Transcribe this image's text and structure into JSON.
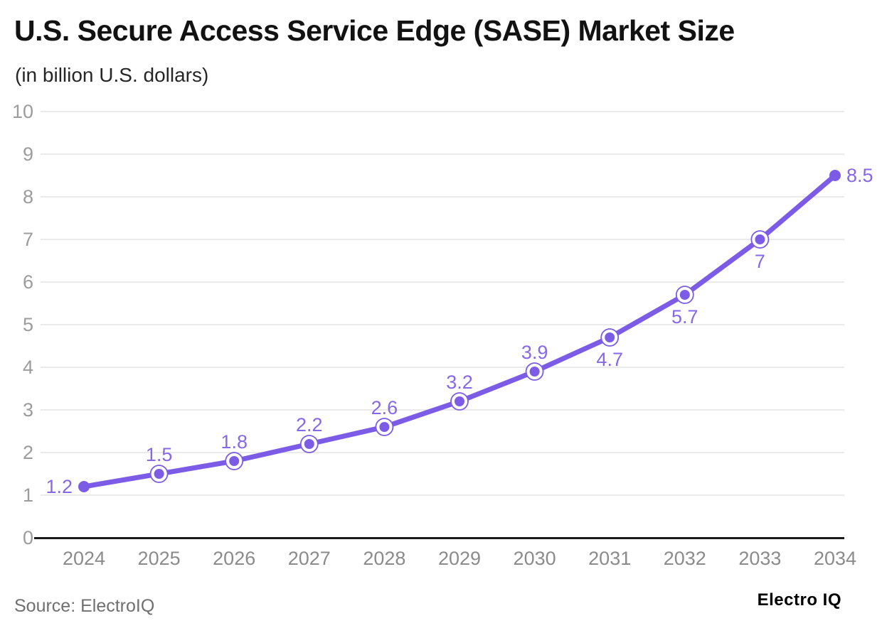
{
  "header": {
    "title": "U.S. Secure Access Service Edge (SASE) Market Size",
    "subtitle": "(in billion U.S. dollars)"
  },
  "footer": {
    "source": "Source: ElectroIQ",
    "brand": "Electro IQ"
  },
  "chart_data": {
    "type": "line",
    "title": "U.S. Secure Access Service Edge (SASE) Market Size",
    "subtitle": "(in billion U.S. dollars)",
    "xlabel": "",
    "ylabel": "",
    "categories": [
      "2024",
      "2025",
      "2026",
      "2027",
      "2028",
      "2029",
      "2030",
      "2031",
      "2032",
      "2033",
      "2034"
    ],
    "values": [
      1.2,
      1.5,
      1.8,
      2.2,
      2.6,
      3.2,
      3.9,
      4.7,
      5.7,
      7,
      8.5
    ],
    "point_labels": [
      "1.2",
      "1.5",
      "1.8",
      "2.2",
      "2.6",
      "3.2",
      "3.9",
      "4.7",
      "5.7",
      "7",
      "8.5"
    ],
    "label_placement": [
      "left",
      "above",
      "above",
      "above",
      "above",
      "above",
      "above",
      "below",
      "below",
      "below",
      "right"
    ],
    "ylim": [
      0,
      10
    ],
    "yticks": [
      0,
      1,
      2,
      3,
      4,
      5,
      6,
      7,
      8,
      9,
      10
    ],
    "grid": true,
    "legend": "none",
    "colors": {
      "line": "#7c5ce6",
      "marker_fill": "#7c5ce6",
      "marker_ring": "#7c5ce6",
      "marker_ring_inner": "#ffffff",
      "point_label": "#8668e8",
      "grid_line": "#e3e3e3",
      "axis_line": "#1a1a1a",
      "y_tick_label": "#9c9c9c",
      "x_tick_label": "#8b8b8b"
    }
  }
}
